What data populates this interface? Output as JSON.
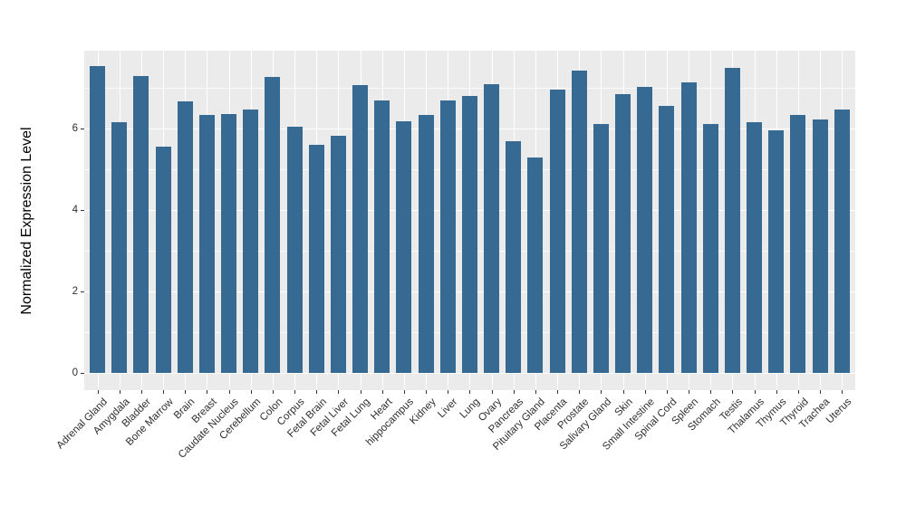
{
  "chart_data": {
    "type": "bar",
    "title": "",
    "xlabel": "",
    "ylabel": "Normalized Expression Level",
    "categories": [
      "Adrenal Gland",
      "Amygdala",
      "Bladder",
      "Bone Marrow",
      "Brain",
      "Breast",
      "Caudate Nucleus",
      "Cerebellum",
      "Colon",
      "Corpus",
      "Fetal Brain",
      "Fetal Liver",
      "Fetal Lung",
      "Heart",
      "hippocampus",
      "Kidney",
      "Liver",
      "Lung",
      "Ovary",
      "Pancreas",
      "Pituitary Gland",
      "Placenta",
      "Prostate",
      "Salivary Gland",
      "Skin",
      "Small Intestine",
      "Spinal Cord",
      "Spleen",
      "Stomach",
      "Testis",
      "Thalamus",
      "Thymus",
      "Thyroid",
      "Trachea",
      "Uterus"
    ],
    "values": [
      7.53,
      6.16,
      7.3,
      5.55,
      6.66,
      6.33,
      6.35,
      6.47,
      7.27,
      6.05,
      5.59,
      5.83,
      7.07,
      6.7,
      6.18,
      6.33,
      6.68,
      6.79,
      7.08,
      5.68,
      5.3,
      6.96,
      7.42,
      6.11,
      6.84,
      7.02,
      6.56,
      7.14,
      6.11,
      7.5,
      6.15,
      5.96,
      6.33,
      6.22,
      6.46
    ],
    "ylim": [
      0,
      7.9
    ],
    "yticks_major": [
      0,
      2,
      4,
      6
    ],
    "yticks_minor": [
      1,
      3,
      5,
      7
    ],
    "grid": "major and minor horizontal white lines, vertical white line per category, on gray panel",
    "legend": "none",
    "colors": {
      "bar_fill": "#376a93",
      "panel_bg": "#ebebeb",
      "grid_major": "#ffffff",
      "grid_minor": "#ffffff",
      "axis_text": "#2e2e2e",
      "tick_mark": "#333333",
      "background": "#ffffff"
    }
  }
}
